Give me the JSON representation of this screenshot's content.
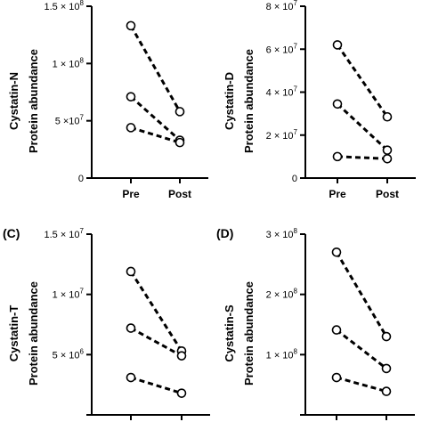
{
  "chart_data": [
    {
      "type": "line",
      "panel": "",
      "ylabel_protein": "Cystatin-N",
      "ylabel_measure": "Protein abundance",
      "categories": [
        "Pre",
        "Post"
      ],
      "ylim": [
        0,
        150000000
      ],
      "yticks": [
        0,
        50000000,
        100000000,
        150000000
      ],
      "ytick_labels": [
        {
          "base": "0",
          "exp": ""
        },
        {
          "base": "5 ×10",
          "exp": "7"
        },
        {
          "base": "1 × 10",
          "exp": "8"
        },
        {
          "base": "1.5 × 10",
          "exp": "8"
        }
      ],
      "series": [
        {
          "values": [
            133000000,
            58000000
          ]
        },
        {
          "values": [
            71000000,
            33000000
          ]
        },
        {
          "values": [
            44000000,
            31000000
          ]
        }
      ]
    },
    {
      "type": "line",
      "panel": "",
      "ylabel_protein": "Cystatin-D",
      "ylabel_measure": "Protein abundance",
      "categories": [
        "Pre",
        "Post"
      ],
      "ylim": [
        0,
        80000000
      ],
      "yticks": [
        0,
        20000000,
        40000000,
        60000000,
        80000000
      ],
      "ytick_labels": [
        {
          "base": "0",
          "exp": ""
        },
        {
          "base": "2 × 10",
          "exp": "7"
        },
        {
          "base": "4 × 10",
          "exp": "7"
        },
        {
          "base": "6 × 10",
          "exp": "7"
        },
        {
          "base": "8 × 10",
          "exp": "7"
        }
      ],
      "series": [
        {
          "values": [
            62000000,
            28500000
          ]
        },
        {
          "values": [
            34500000,
            13000000
          ]
        },
        {
          "values": [
            10000000,
            9000000
          ]
        }
      ]
    },
    {
      "type": "line",
      "panel": "(C)",
      "ylabel_protein": "Cystatin-T",
      "ylabel_measure": "Protein abundance",
      "categories": [
        "",
        ""
      ],
      "ylim": [
        0,
        15000000
      ],
      "yticks": [
        0,
        5000000,
        10000000,
        15000000
      ],
      "ytick_labels": [
        {
          "base": "",
          "exp": ""
        },
        {
          "base": "5 × 10",
          "exp": "6"
        },
        {
          "base": "1 × 10",
          "exp": "7"
        },
        {
          "base": "1.5 × 10",
          "exp": "7"
        }
      ],
      "series": [
        {
          "values": [
            11900000,
            5300000
          ]
        },
        {
          "values": [
            7200000,
            4900000
          ]
        },
        {
          "values": [
            3100000,
            1800000
          ]
        }
      ]
    },
    {
      "type": "line",
      "panel": "(D)",
      "ylabel_protein": "Cystatin-S",
      "ylabel_measure": "Protein abundance",
      "categories": [
        "",
        ""
      ],
      "ylim": [
        0,
        300000000
      ],
      "yticks": [
        0,
        100000000,
        200000000,
        300000000
      ],
      "ytick_labels": [
        {
          "base": "",
          "exp": ""
        },
        {
          "base": "1 × 10",
          "exp": "8"
        },
        {
          "base": "2 × 10",
          "exp": "8"
        },
        {
          "base": "3 × 10",
          "exp": "8"
        }
      ],
      "series": [
        {
          "values": [
            270000000,
            130000000
          ]
        },
        {
          "values": [
            141000000,
            77000000
          ]
        },
        {
          "values": [
            62000000,
            39000000
          ]
        }
      ]
    }
  ]
}
